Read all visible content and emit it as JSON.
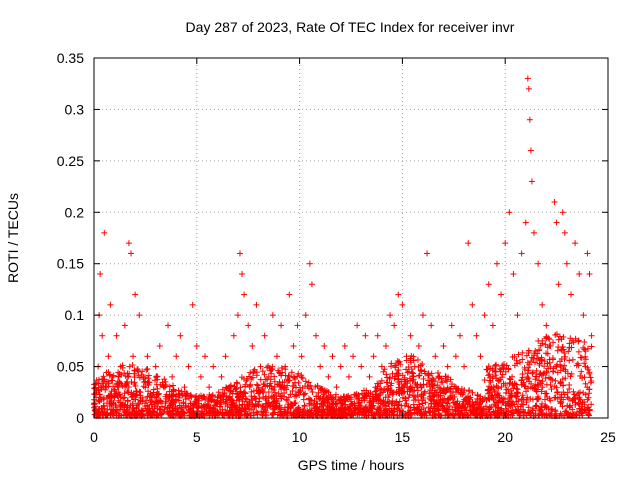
{
  "chart_data": {
    "type": "scatter",
    "title": "Day 287 of 2023, Rate Of TEC Index for receiver invr",
    "xlabel": "GPS time / hours",
    "ylabel": "ROTI / TECUs",
    "xlim": [
      0,
      25
    ],
    "ylim": [
      0,
      0.35
    ],
    "xticks": [
      0,
      5,
      10,
      15,
      20,
      25
    ],
    "yticks": [
      0,
      0.05,
      0.1,
      0.15,
      0.2,
      0.25,
      0.3,
      0.35
    ],
    "xtick_labels": [
      "0",
      "5",
      "10",
      "15",
      "20",
      "25"
    ],
    "ytick_labels": [
      "0",
      "0.05",
      "0.1",
      "0.15",
      "0.2",
      "0.25",
      "0.3",
      "0.35"
    ],
    "grid": true,
    "marker": "plus",
    "color": "#ff0000",
    "series": [
      {
        "name": "ROTI",
        "points": [
          [
            0.0,
            0.01
          ],
          [
            0.1,
            0.02
          ],
          [
            0.2,
            0.05
          ],
          [
            0.25,
            0.1
          ],
          [
            0.3,
            0.14
          ],
          [
            0.4,
            0.08
          ],
          [
            0.5,
            0.18
          ],
          [
            0.6,
            0.03
          ],
          [
            0.7,
            0.06
          ],
          [
            0.8,
            0.11
          ],
          [
            0.9,
            0.04
          ],
          [
            1.0,
            0.02
          ],
          [
            1.1,
            0.08
          ],
          [
            1.2,
            0.03
          ],
          [
            1.3,
            0.05
          ],
          [
            1.5,
            0.09
          ],
          [
            1.7,
            0.17
          ],
          [
            1.8,
            0.16
          ],
          [
            1.9,
            0.06
          ],
          [
            2.0,
            0.12
          ],
          [
            2.2,
            0.1
          ],
          [
            2.4,
            0.04
          ],
          [
            2.6,
            0.06
          ],
          [
            2.8,
            0.02
          ],
          [
            3.0,
            0.05
          ],
          [
            3.2,
            0.07
          ],
          [
            3.4,
            0.03
          ],
          [
            3.6,
            0.09
          ],
          [
            3.8,
            0.04
          ],
          [
            4.0,
            0.06
          ],
          [
            4.2,
            0.08
          ],
          [
            4.4,
            0.03
          ],
          [
            4.6,
            0.05
          ],
          [
            4.8,
            0.11
          ],
          [
            5.0,
            0.07
          ],
          [
            5.2,
            0.04
          ],
          [
            5.4,
            0.06
          ],
          [
            5.6,
            0.03
          ],
          [
            5.8,
            0.05
          ],
          [
            6.0,
            0.02
          ],
          [
            6.2,
            0.04
          ],
          [
            6.4,
            0.06
          ],
          [
            6.6,
            0.03
          ],
          [
            6.8,
            0.08
          ],
          [
            7.0,
            0.1
          ],
          [
            7.1,
            0.16
          ],
          [
            7.2,
            0.14
          ],
          [
            7.3,
            0.12
          ],
          [
            7.5,
            0.09
          ],
          [
            7.7,
            0.07
          ],
          [
            7.9,
            0.11
          ],
          [
            8.1,
            0.05
          ],
          [
            8.3,
            0.08
          ],
          [
            8.5,
            0.04
          ],
          [
            8.7,
            0.1
          ],
          [
            8.9,
            0.06
          ],
          [
            9.1,
            0.09
          ],
          [
            9.3,
            0.05
          ],
          [
            9.5,
            0.12
          ],
          [
            9.7,
            0.07
          ],
          [
            9.9,
            0.09
          ],
          [
            10.1,
            0.06
          ],
          [
            10.3,
            0.1
          ],
          [
            10.5,
            0.15
          ],
          [
            10.6,
            0.13
          ],
          [
            10.8,
            0.08
          ],
          [
            11.0,
            0.05
          ],
          [
            11.2,
            0.07
          ],
          [
            11.4,
            0.04
          ],
          [
            11.6,
            0.06
          ],
          [
            11.8,
            0.03
          ],
          [
            12.0,
            0.05
          ],
          [
            12.2,
            0.07
          ],
          [
            12.4,
            0.04
          ],
          [
            12.6,
            0.06
          ],
          [
            12.8,
            0.09
          ],
          [
            13.0,
            0.05
          ],
          [
            13.2,
            0.08
          ],
          [
            13.4,
            0.04
          ],
          [
            13.6,
            0.06
          ],
          [
            13.8,
            0.08
          ],
          [
            14.0,
            0.05
          ],
          [
            14.2,
            0.07
          ],
          [
            14.4,
            0.1
          ],
          [
            14.6,
            0.09
          ],
          [
            14.8,
            0.12
          ],
          [
            15.0,
            0.11
          ],
          [
            15.2,
            0.06
          ],
          [
            15.4,
            0.08
          ],
          [
            15.6,
            0.05
          ],
          [
            15.8,
            0.07
          ],
          [
            16.0,
            0.1
          ],
          [
            16.2,
            0.16
          ],
          [
            16.4,
            0.09
          ],
          [
            16.6,
            0.06
          ],
          [
            16.8,
            0.04
          ],
          [
            17.0,
            0.07
          ],
          [
            17.2,
            0.05
          ],
          [
            17.4,
            0.09
          ],
          [
            17.6,
            0.06
          ],
          [
            17.8,
            0.08
          ],
          [
            18.0,
            0.05
          ],
          [
            18.2,
            0.17
          ],
          [
            18.4,
            0.11
          ],
          [
            18.6,
            0.08
          ],
          [
            18.8,
            0.06
          ],
          [
            19.0,
            0.1
          ],
          [
            19.2,
            0.13
          ],
          [
            19.4,
            0.09
          ],
          [
            19.6,
            0.15
          ],
          [
            19.8,
            0.12
          ],
          [
            20.0,
            0.17
          ],
          [
            20.2,
            0.2
          ],
          [
            20.4,
            0.14
          ],
          [
            20.6,
            0.1
          ],
          [
            20.8,
            0.16
          ],
          [
            21.0,
            0.19
          ],
          [
            21.1,
            0.33
          ],
          [
            21.15,
            0.32
          ],
          [
            21.2,
            0.29
          ],
          [
            21.25,
            0.26
          ],
          [
            21.3,
            0.23
          ],
          [
            21.4,
            0.18
          ],
          [
            21.6,
            0.15
          ],
          [
            21.8,
            0.11
          ],
          [
            22.0,
            0.09
          ],
          [
            22.2,
            0.07
          ],
          [
            22.4,
            0.21
          ],
          [
            22.5,
            0.19
          ],
          [
            22.6,
            0.13
          ],
          [
            22.8,
            0.2
          ],
          [
            22.9,
            0.18
          ],
          [
            23.0,
            0.15
          ],
          [
            23.2,
            0.12
          ],
          [
            23.4,
            0.17
          ],
          [
            23.6,
            0.14
          ],
          [
            23.8,
            0.1
          ],
          [
            24.0,
            0.16
          ],
          [
            24.1,
            0.14
          ],
          [
            24.2,
            0.08
          ]
        ]
      }
    ]
  }
}
